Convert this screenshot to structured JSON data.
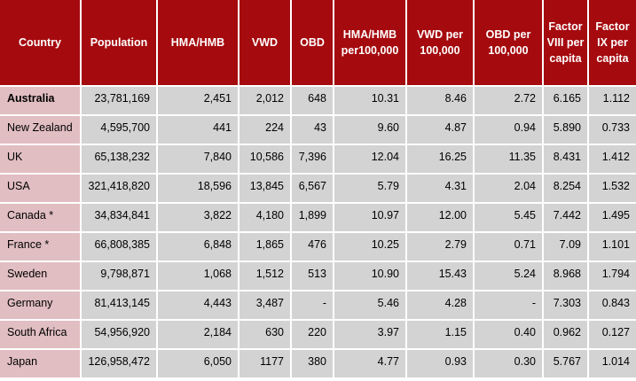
{
  "headers": [
    "Country",
    "Population",
    "HMA/HMB",
    "VWD",
    "OBD",
    "HMA/HMB per100,000",
    "VWD per 100,000",
    "OBD per 100,000",
    "Factor VIII per capita",
    "Factor IX per capita"
  ],
  "rows": [
    [
      "Australia",
      "23,781,169",
      "2,451",
      "2,012",
      "648",
      "10.31",
      "8.46",
      "2.72",
      "6.165",
      "1.112"
    ],
    [
      "New Zealand",
      "4,595,700",
      "441",
      "224",
      "43",
      "9.60",
      "4.87",
      "0.94",
      "5.890",
      "0.733"
    ],
    [
      "UK",
      "65,138,232",
      "7,840",
      "10,586",
      "7,396",
      "12.04",
      "16.25",
      "11.35",
      "8.431",
      "1.412"
    ],
    [
      "USA",
      "321,418,820",
      "18,596",
      "13,845",
      "6,567",
      "5.79",
      "4.31",
      "2.04",
      "8.254",
      "1.532"
    ],
    [
      "Canada *",
      "34,834,841",
      "3,822",
      "4,180",
      "1,899",
      "10.97",
      "12.00",
      "5.45",
      "7.442",
      "1.495"
    ],
    [
      "France *",
      "66,808,385",
      "6,848",
      "1,865",
      "476",
      "10.25",
      "2.79",
      "0.71",
      "7.09",
      "1.101"
    ],
    [
      "Sweden",
      "9,798,871",
      "1,068",
      "1,512",
      "513",
      "10.90",
      "15.43",
      "5.24",
      "8.968",
      "1.794"
    ],
    [
      "Germany",
      "81,413,145",
      "4,443",
      "3,487",
      "-",
      "5.46",
      "4.28",
      "-",
      "7.303",
      "0.843"
    ],
    [
      "South Africa",
      "54,956,920",
      "2,184",
      "630",
      "220",
      "3.97",
      "1.15",
      "0.40",
      "0.962",
      "0.127"
    ],
    [
      "Japan",
      "126,958,472",
      "6,050",
      "1177",
      "380",
      "4.77",
      "0.93",
      "0.30",
      "5.767",
      "1.014"
    ]
  ]
}
